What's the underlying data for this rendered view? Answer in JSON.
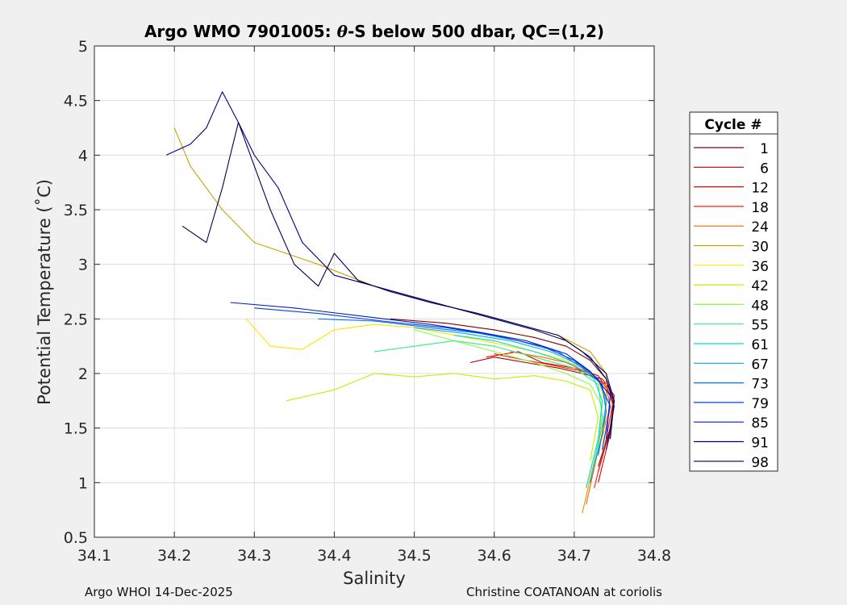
{
  "chart_data": {
    "type": "line",
    "title_prefix": "Argo WMO 7901005: ",
    "title_theta": "θ",
    "title_suffix": "-S below 500 dbar,  QC=(1,2)",
    "xlabel": "Salinity",
    "ylabel": "Potential Temperature (˚C)",
    "xlim": [
      34.1,
      34.8
    ],
    "ylim": [
      0.5,
      5
    ],
    "xticks": [
      "34.1",
      "34.2",
      "34.3",
      "34.4",
      "34.5",
      "34.6",
      "34.7",
      "34.8"
    ],
    "yticks": [
      "0.5",
      "1",
      "1.5",
      "2",
      "2.5",
      "3",
      "3.5",
      "4",
      "4.5",
      "5"
    ],
    "grid": true,
    "legend_title": "Cycle #",
    "legend_position": "outside-right",
    "series": [
      {
        "name": "1",
        "color": "#800000",
        "x": [
          34.47,
          34.54,
          34.6,
          34.65,
          34.69,
          34.72,
          34.74,
          34.75,
          34.745,
          34.73
        ],
        "y": [
          2.5,
          2.46,
          2.4,
          2.33,
          2.25,
          2.12,
          1.95,
          1.75,
          1.5,
          1.1
        ]
      },
      {
        "name": "6",
        "color": "#b00000",
        "x": [
          34.57,
          34.6,
          34.64,
          34.68,
          34.71,
          34.735,
          34.75,
          34.745,
          34.73
        ],
        "y": [
          2.1,
          2.15,
          2.1,
          2.05,
          2.0,
          1.95,
          1.8,
          1.5,
          1.15
        ]
      },
      {
        "name": "12",
        "color": "#e00000",
        "x": [
          34.59,
          34.63,
          34.66,
          34.7,
          34.73,
          34.75,
          34.745,
          34.73
        ],
        "y": [
          2.15,
          2.2,
          2.1,
          2.05,
          1.98,
          1.75,
          1.45,
          1.0
        ]
      },
      {
        "name": "18",
        "color": "#ff2000",
        "x": [
          34.6,
          34.64,
          34.67,
          34.71,
          34.74,
          34.748,
          34.74,
          34.725
        ],
        "y": [
          2.18,
          2.12,
          2.08,
          2.02,
          1.9,
          1.72,
          1.4,
          0.95
        ]
      },
      {
        "name": "24",
        "color": "#ff6000",
        "x": [
          34.62,
          34.66,
          34.69,
          34.72,
          34.74,
          34.745,
          34.73,
          34.715
        ],
        "y": [
          2.2,
          2.15,
          2.1,
          2.0,
          1.88,
          1.7,
          1.3,
          0.8
        ]
      },
      {
        "name": "30",
        "color": "#d0a000",
        "x": [
          34.2,
          34.22,
          34.26,
          34.3,
          34.38,
          34.45,
          34.52,
          34.58,
          34.63,
          34.68,
          34.72,
          34.74,
          34.74,
          34.73,
          34.71
        ],
        "y": [
          4.25,
          3.9,
          3.5,
          3.2,
          3.0,
          2.8,
          2.65,
          2.55,
          2.45,
          2.35,
          2.2,
          2.0,
          1.7,
          1.35,
          0.72
        ]
      },
      {
        "name": "36",
        "color": "#ffe000",
        "x": [
          34.29,
          34.32,
          34.36,
          34.4,
          34.45,
          34.5,
          34.55,
          34.6,
          34.65,
          34.7,
          34.73,
          34.74,
          34.735
        ],
        "y": [
          2.5,
          2.25,
          2.22,
          2.4,
          2.45,
          2.42,
          2.35,
          2.28,
          2.2,
          2.1,
          1.95,
          1.7,
          1.3
        ]
      },
      {
        "name": "42",
        "color": "#c0f000",
        "x": [
          34.34,
          34.4,
          34.45,
          34.5,
          34.55,
          34.6,
          34.65,
          34.69,
          34.72,
          34.73,
          34.72
        ],
        "y": [
          1.75,
          1.85,
          2.0,
          1.97,
          2.0,
          1.95,
          1.98,
          1.93,
          1.85,
          1.6,
          1.2
        ]
      },
      {
        "name": "48",
        "color": "#80ff40",
        "x": [
          34.5,
          34.55,
          34.6,
          34.65,
          34.69,
          34.72,
          34.735,
          34.73,
          34.715
        ],
        "y": [
          2.4,
          2.3,
          2.2,
          2.1,
          2.0,
          1.9,
          1.7,
          1.4,
          0.95
        ]
      },
      {
        "name": "55",
        "color": "#30f080",
        "x": [
          34.45,
          34.5,
          34.55,
          34.6,
          34.65,
          34.7,
          34.73,
          34.735,
          34.725
        ],
        "y": [
          2.2,
          2.25,
          2.3,
          2.25,
          2.15,
          2.05,
          1.9,
          1.6,
          1.15
        ]
      },
      {
        "name": "61",
        "color": "#00e0c0",
        "x": [
          34.55,
          34.6,
          34.65,
          34.7,
          34.725,
          34.735,
          34.73,
          34.715
        ],
        "y": [
          2.35,
          2.3,
          2.2,
          2.08,
          1.95,
          1.75,
          1.4,
          0.95
        ]
      },
      {
        "name": "67",
        "color": "#00b0e0",
        "x": [
          34.5,
          34.56,
          34.62,
          34.67,
          34.71,
          34.73,
          34.74,
          34.735,
          34.72
        ],
        "y": [
          2.42,
          2.37,
          2.3,
          2.2,
          2.07,
          1.95,
          1.75,
          1.45,
          1.0
        ]
      },
      {
        "name": "73",
        "color": "#0070ff",
        "x": [
          34.38,
          34.45,
          34.52,
          34.58,
          34.63,
          34.68,
          34.71,
          34.735,
          34.74,
          34.73
        ],
        "y": [
          2.5,
          2.48,
          2.42,
          2.37,
          2.3,
          2.2,
          2.05,
          1.9,
          1.65,
          1.25
        ]
      },
      {
        "name": "79",
        "color": "#0040e0",
        "x": [
          34.3,
          34.38,
          34.46,
          34.54,
          34.6,
          34.66,
          34.7,
          34.73,
          34.745,
          34.735
        ],
        "y": [
          2.6,
          2.55,
          2.48,
          2.42,
          2.35,
          2.25,
          2.12,
          1.95,
          1.7,
          1.3
        ]
      },
      {
        "name": "85",
        "color": "#0020c0",
        "x": [
          34.27,
          34.35,
          34.44,
          34.52,
          34.58,
          34.64,
          34.69,
          34.72,
          34.745,
          34.74
        ],
        "y": [
          2.65,
          2.6,
          2.52,
          2.45,
          2.38,
          2.3,
          2.18,
          2.02,
          1.8,
          1.4
        ]
      },
      {
        "name": "91",
        "color": "#000080",
        "x": [
          34.19,
          34.22,
          34.24,
          34.26,
          34.28,
          34.3,
          34.33,
          34.36,
          34.4,
          34.45,
          34.5,
          34.55,
          34.6,
          34.65,
          34.69,
          34.72,
          34.74,
          34.75,
          34.74
        ],
        "y": [
          4.0,
          4.1,
          4.25,
          4.58,
          4.3,
          4.0,
          3.7,
          3.2,
          2.9,
          2.8,
          2.7,
          2.6,
          2.5,
          2.4,
          2.3,
          2.15,
          1.95,
          1.7,
          1.3
        ]
      },
      {
        "name": "98",
        "color": "#000050",
        "x": [
          34.21,
          34.24,
          34.26,
          34.28,
          34.3,
          34.32,
          34.35,
          34.38,
          34.4,
          34.43,
          34.47,
          34.52,
          34.58,
          34.63,
          34.68,
          34.71,
          34.74,
          34.75,
          34.745
        ],
        "y": [
          3.35,
          3.2,
          3.7,
          4.3,
          3.9,
          3.5,
          3.0,
          2.8,
          3.1,
          2.85,
          2.75,
          2.65,
          2.55,
          2.45,
          2.35,
          2.2,
          2.0,
          1.75,
          1.4
        ]
      }
    ]
  },
  "footer": {
    "left": "Argo WHOI 14-Dec-2025",
    "right": "Christine COATANOAN at coriolis"
  }
}
